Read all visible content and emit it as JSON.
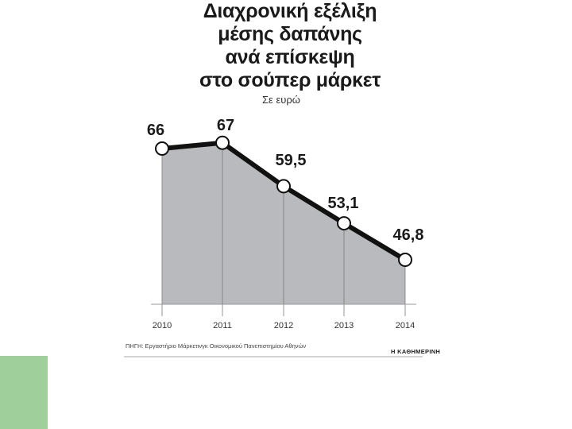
{
  "chart_data": {
    "type": "area",
    "title_lines": [
      "Διαχρονική εξέλιξη",
      "μέσης δαπάνης",
      "ανά επίσκεψη",
      "στο σούπερ μάρκετ"
    ],
    "subtitle": "Σε ευρώ",
    "x": [
      "2010",
      "2011",
      "2012",
      "2013",
      "2014"
    ],
    "series": [
      {
        "values": [
          66,
          67,
          59.5,
          53.1,
          46.8
        ]
      }
    ],
    "data_labels": [
      "66",
      "67",
      "59,5",
      "53,1",
      "46,8"
    ],
    "xlabel": "",
    "ylabel": "",
    "ylim": [
      0,
      70
    ],
    "grid": "vertical",
    "colors": {
      "fill": "#b9babd",
      "line": "#111111",
      "marker_fill": "#ffffff"
    }
  },
  "source": "ΠΗΓΗ: Εργαστήριο Μάρκετινγκ Οικονομικού Πανεπιστημίου Αθηνών",
  "brand": "Η ΚΑΘΗΜΕΡΙΝΗ",
  "accent_color": "#9fcf9b"
}
